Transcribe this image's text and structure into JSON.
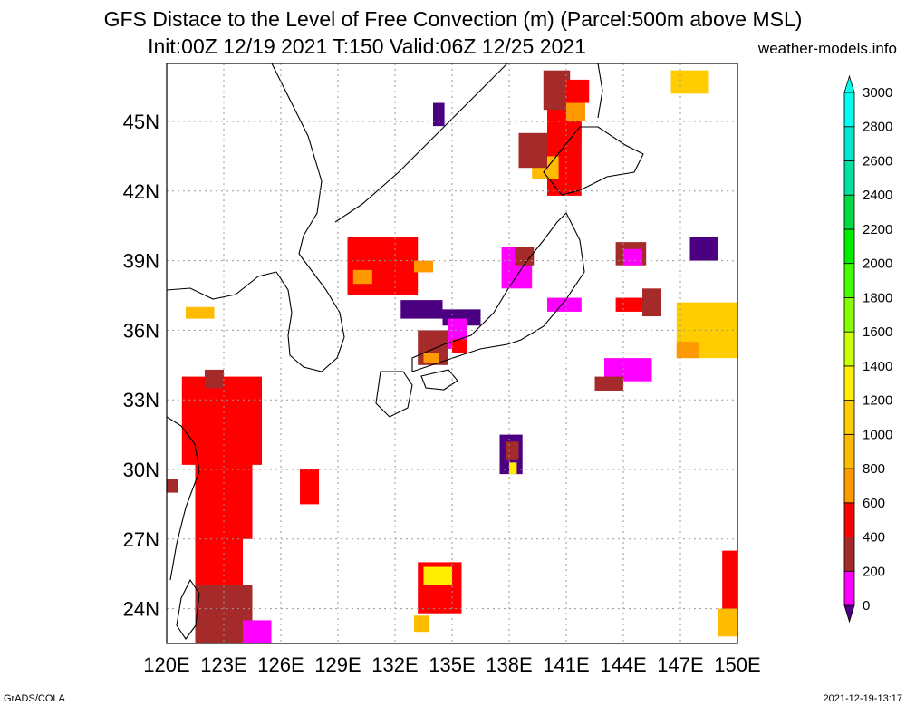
{
  "title": {
    "line1": "GFS Distace to the Level of Free Convection (m) (Parcel:500m above MSL)",
    "line2": "Init:00Z 12/19 2021 T:150 Valid:06Z 12/25 2021",
    "site": "weather-models.info"
  },
  "axes": {
    "lon_labels": [
      "120E",
      "123E",
      "126E",
      "129E",
      "132E",
      "135E",
      "138E",
      "141E",
      "144E",
      "147E",
      "150E"
    ],
    "lat_labels": [
      "24N",
      "27N",
      "30N",
      "33N",
      "36N",
      "39N",
      "42N",
      "45N"
    ],
    "lon_range": [
      120,
      150
    ],
    "lat_range": [
      22.5,
      47.5
    ],
    "grid": "dotted"
  },
  "colorbar": {
    "labels": [
      "0",
      "200",
      "400",
      "600",
      "800",
      "1000",
      "1200",
      "1400",
      "1600",
      "1800",
      "2000",
      "2200",
      "2400",
      "2600",
      "2800",
      "3000"
    ],
    "colors": [
      "#4b0082",
      "#ff00ff",
      "#a52a2a",
      "#ff0000",
      "#ff9900",
      "#ffbb00",
      "#ffcc00",
      "#ffee00",
      "#ccff00",
      "#88ff00",
      "#44ff00",
      "#00ee00",
      "#00dd44",
      "#00e0a0",
      "#00e8d0",
      "#00ffee"
    ]
  },
  "footer": {
    "left": "GrADS/COLA",
    "right": "2021-12-19-13:17"
  }
}
